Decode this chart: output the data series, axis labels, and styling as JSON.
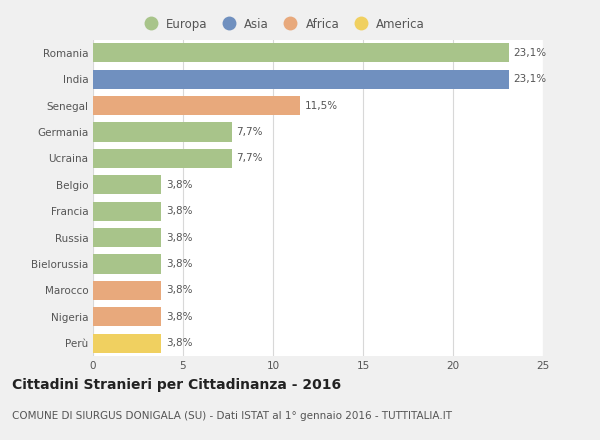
{
  "categories": [
    "Romania",
    "India",
    "Senegal",
    "Germania",
    "Ucraina",
    "Belgio",
    "Francia",
    "Russia",
    "Bielorussia",
    "Marocco",
    "Nigeria",
    "Perù"
  ],
  "values": [
    23.1,
    23.1,
    11.5,
    7.7,
    7.7,
    3.8,
    3.8,
    3.8,
    3.8,
    3.8,
    3.8,
    3.8
  ],
  "labels": [
    "23,1%",
    "23,1%",
    "11,5%",
    "7,7%",
    "7,7%",
    "3,8%",
    "3,8%",
    "3,8%",
    "3,8%",
    "3,8%",
    "3,8%",
    "3,8%"
  ],
  "continents": [
    "Europa",
    "Asia",
    "Africa",
    "Europa",
    "Europa",
    "Europa",
    "Europa",
    "Europa",
    "Europa",
    "Africa",
    "Africa",
    "America"
  ],
  "colors": {
    "Europa": "#a8c48a",
    "Asia": "#7090bf",
    "Africa": "#e8a97c",
    "America": "#f0d060"
  },
  "legend_order": [
    "Europa",
    "Asia",
    "Africa",
    "America"
  ],
  "title": "Cittadini Stranieri per Cittadinanza - 2016",
  "subtitle": "COMUNE DI SIURGUS DONIGALA (SU) - Dati ISTAT al 1° gennaio 2016 - TUTTITALIA.IT",
  "xlim": [
    0,
    25
  ],
  "xticks": [
    0,
    5,
    10,
    15,
    20,
    25
  ],
  "fig_bg_color": "#f0f0f0",
  "plot_bg_color": "#ffffff",
  "grid_color": "#d8d8d8",
  "text_color": "#555555",
  "title_color": "#222222",
  "label_fontsize": 7.5,
  "tick_fontsize": 7.5,
  "legend_fontsize": 8.5,
  "title_fontsize": 10,
  "subtitle_fontsize": 7.5
}
